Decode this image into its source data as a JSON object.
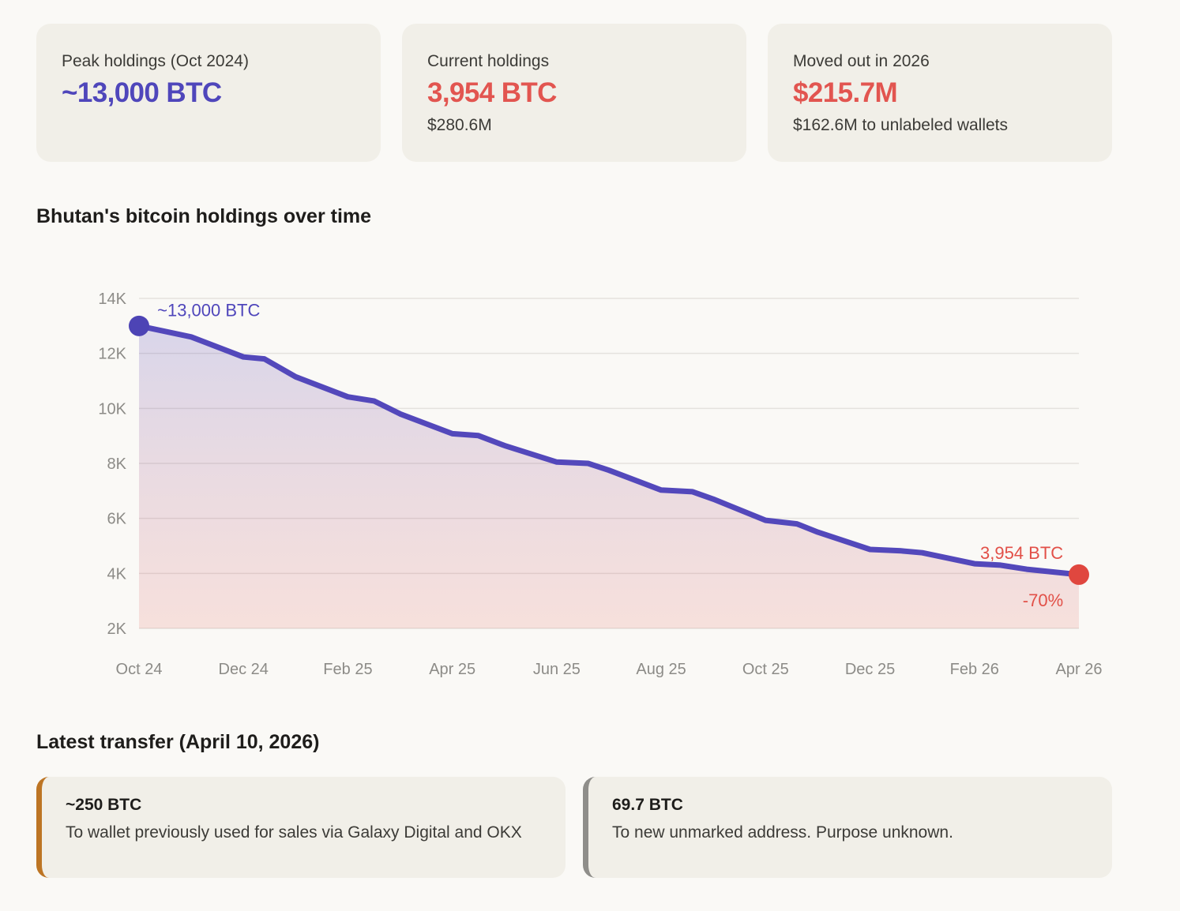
{
  "stats": [
    {
      "label": "Peak holdings (Oct 2024)",
      "value": "~13,000 BTC",
      "value_color": "#4f46bb",
      "sub": ""
    },
    {
      "label": "Current holdings",
      "value": "3,954 BTC",
      "value_color": "#e25550",
      "sub": "$280.6M"
    },
    {
      "label": "Moved out in 2026",
      "value": "$215.7M",
      "value_color": "#e25550",
      "sub": "$162.6M to unlabeled wallets"
    }
  ],
  "chart_data": {
    "type": "area",
    "title": "Bhutan's bitcoin holdings over time",
    "ylim": [
      2000,
      14000
    ],
    "t_max": 18,
    "grid": true,
    "legend": "none",
    "yticks": [
      {
        "v": 14000,
        "label": "14K"
      },
      {
        "v": 12000,
        "label": "12K"
      },
      {
        "v": 10000,
        "label": "10K"
      },
      {
        "v": 8000,
        "label": "8K"
      },
      {
        "v": 6000,
        "label": "6K"
      },
      {
        "v": 4000,
        "label": "4K"
      },
      {
        "v": 2000,
        "label": "2K"
      }
    ],
    "xticks": [
      {
        "t": 0,
        "label": "Oct 24"
      },
      {
        "t": 2,
        "label": "Dec 24"
      },
      {
        "t": 4,
        "label": "Feb 25"
      },
      {
        "t": 6,
        "label": "Apr 25"
      },
      {
        "t": 8,
        "label": "Jun 25"
      },
      {
        "t": 10,
        "label": "Aug 25"
      },
      {
        "t": 12,
        "label": "Oct 25"
      },
      {
        "t": 14,
        "label": "Dec 25"
      },
      {
        "t": 16,
        "label": "Feb 26"
      },
      {
        "t": 18,
        "label": "Apr 26"
      }
    ],
    "points": [
      [
        0,
        13000
      ],
      [
        1,
        12600
      ],
      [
        2,
        11870
      ],
      [
        2.4,
        11800
      ],
      [
        3,
        11150
      ],
      [
        4,
        10420
      ],
      [
        4.5,
        10270
      ],
      [
        5,
        9800
      ],
      [
        6,
        9080
      ],
      [
        6.5,
        9010
      ],
      [
        7,
        8650
      ],
      [
        8,
        8050
      ],
      [
        8.6,
        8000
      ],
      [
        9,
        7750
      ],
      [
        10,
        7030
      ],
      [
        10.6,
        6970
      ],
      [
        11,
        6700
      ],
      [
        12,
        5930
      ],
      [
        12.6,
        5800
      ],
      [
        13,
        5500
      ],
      [
        14,
        4870
      ],
      [
        14.6,
        4820
      ],
      [
        15,
        4750
      ],
      [
        16,
        4350
      ],
      [
        16.5,
        4300
      ],
      [
        17,
        4150
      ],
      [
        18,
        3954
      ]
    ],
    "markers": [
      {
        "name": "peak-point",
        "t": 0,
        "value": 13000,
        "color": "#4d44b5"
      },
      {
        "name": "end-point",
        "t": 18,
        "value": 3954,
        "color": "#e0473f"
      }
    ],
    "annotations": [
      {
        "text": "~13,000 BTC",
        "t": 0.35,
        "value": 13560,
        "anchor": "start",
        "color": "#4f46bb"
      },
      {
        "text": "3,954 BTC",
        "t": 17.7,
        "value": 4730,
        "anchor": "end",
        "color": "#e25048"
      },
      {
        "text": "-70%",
        "t": 17.7,
        "value": 3000,
        "anchor": "end",
        "color": "#e25048"
      }
    ],
    "colors": {
      "line": "#5348bb",
      "grid": "#e4e2de",
      "tick": "#8c8b87",
      "area_top": "rgba(83,72,187,0.20)",
      "area_bottom": "rgba(224,71,63,0.14)"
    }
  },
  "transfers": {
    "heading": "Latest transfer (April 10, 2026)",
    "items": [
      {
        "amount": "~250 BTC",
        "desc": "To wallet previously used for sales via Galaxy Digital and OKX",
        "accent": "#bd7524"
      },
      {
        "amount": "69.7 BTC",
        "desc": "To new unmarked address. Purpose unknown.",
        "accent": "#8f8e8a"
      }
    ]
  }
}
